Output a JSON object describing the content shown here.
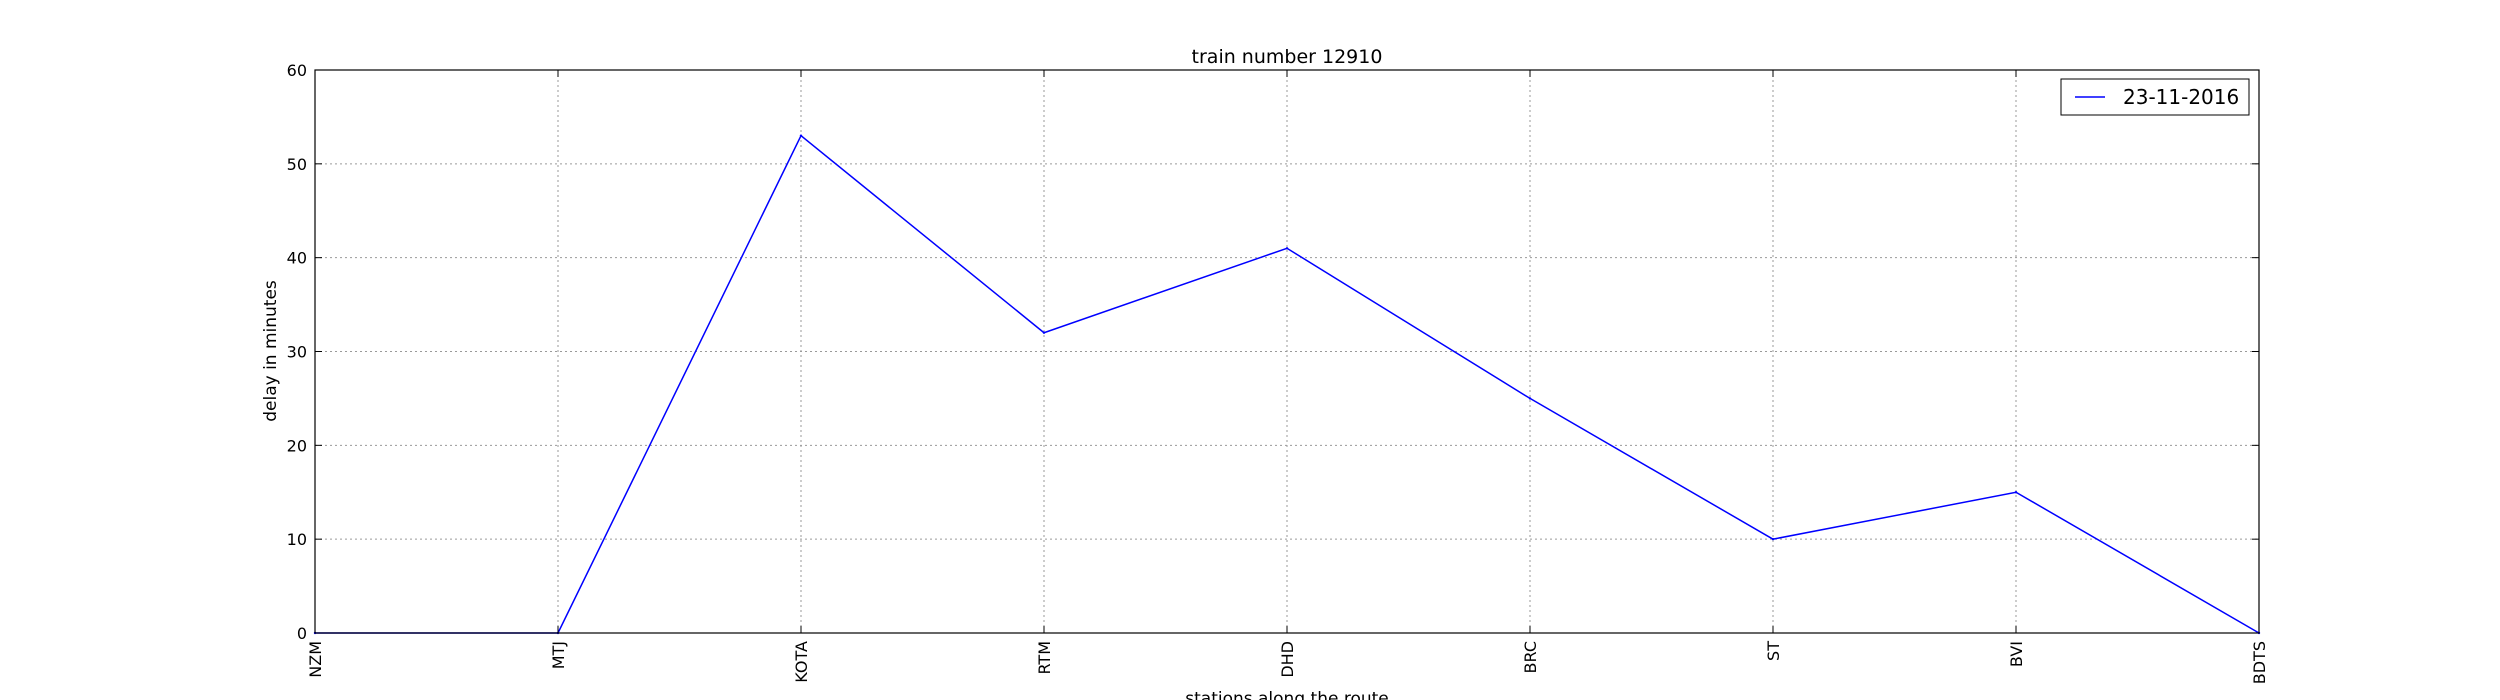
{
  "chart_data": {
    "type": "line",
    "title": "train number 12910",
    "xlabel": "stations along the route",
    "ylabel": "delay in minutes",
    "categories": [
      "NZM",
      "MTJ",
      "KOTA",
      "RTM",
      "DHD",
      "BRC",
      "ST",
      "BVI",
      "BDTS"
    ],
    "series": [
      {
        "name": "23-11-2016",
        "values": [
          0,
          0,
          53,
          32,
          41,
          25,
          10,
          15,
          0
        ],
        "color": "#0000ff"
      }
    ],
    "ylim": [
      0,
      60
    ],
    "yticks": [
      0,
      10,
      20,
      30,
      40,
      50,
      60
    ],
    "grid": true,
    "legend_position": "top-right"
  }
}
